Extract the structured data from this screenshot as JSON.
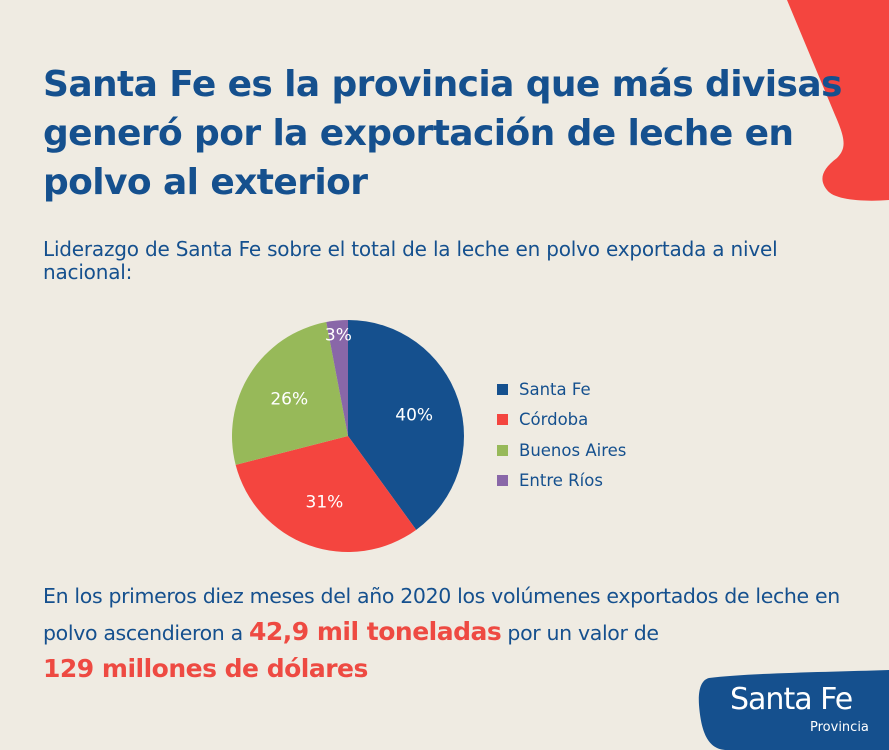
{
  "title": "Santa Fe es la provincia que más divisas generó por la exportación de leche en polvo al exterior",
  "subtitle": "Liderazgo de Santa Fe sobre el total de la leche en polvo exportada a nivel nacional:",
  "chart_data": {
    "type": "pie",
    "title": "",
    "categories": [
      "Santa Fe",
      "Córdoba",
      "Buenos Aires",
      "Entre Ríos"
    ],
    "values": [
      40,
      31,
      26,
      3
    ],
    "labels": [
      "40%",
      "31%",
      "26%",
      "3%"
    ],
    "colors": [
      "#15508e",
      "#f4453f",
      "#97b959",
      "#8967a8"
    ],
    "legend_position": "right"
  },
  "body": {
    "part1": "En los primeros diez meses del año 2020 los volúmenes exportados de leche en polvo ascendieron a ",
    "highlight1": "42,9 mil toneladas",
    "part2": " por un valor de ",
    "highlight2": "129 millones de dólares"
  },
  "logo": {
    "name": "Santa Fe",
    "sub": "Provincia"
  },
  "colors": {
    "background": "#efebe2",
    "primary_blue": "#15508e",
    "accent_red": "#ee4a42"
  }
}
